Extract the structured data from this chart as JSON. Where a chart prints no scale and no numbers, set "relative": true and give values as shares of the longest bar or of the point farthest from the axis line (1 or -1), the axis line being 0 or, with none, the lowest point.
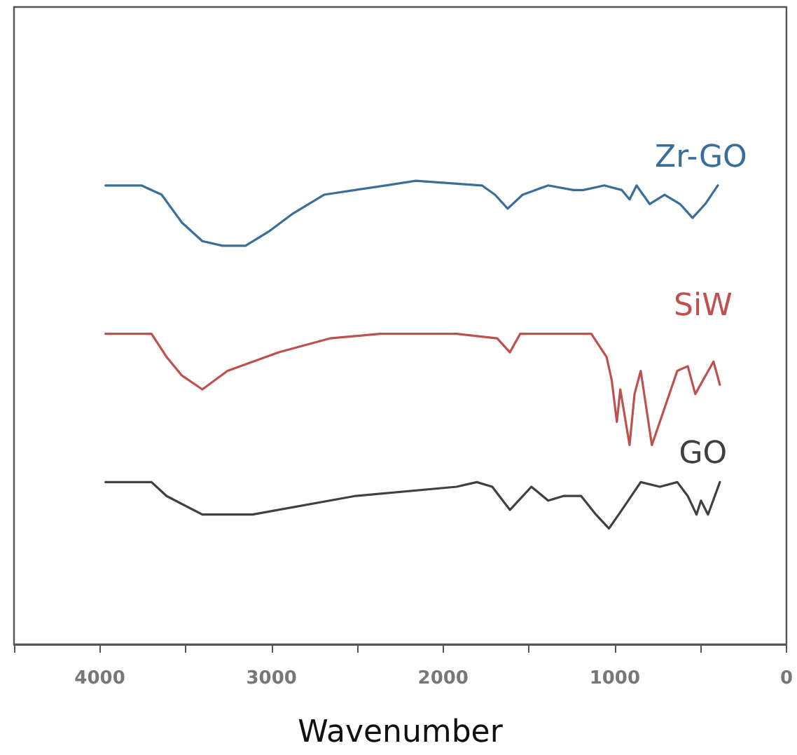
{
  "chart_data": {
    "type": "line",
    "xlabel": "Wavenumber",
    "relative": true,
    "xlim": [
      4500,
      0
    ],
    "xticks": [
      {
        "value": 4500,
        "label": null
      },
      4000,
      {
        "value": 3500,
        "label": null
      },
      3000,
      {
        "value": 2500,
        "label": null
      },
      2000,
      {
        "value": 1500,
        "label": null
      },
      1000,
      {
        "value": 500,
        "label": null
      },
      0
    ],
    "grid": false,
    "legend": false,
    "marker": "none",
    "line_style": "solid",
    "series": [
      {
        "name": "Zr-GO",
        "color": "#3a6e9a",
        "x": [
          3967,
          3758,
          3640,
          3522,
          3403,
          3285,
          3151,
          3018,
          2873,
          2694,
          2514,
          2336,
          2159,
          1774,
          1698,
          1624,
          1537,
          1388,
          1241,
          1184,
          1061,
          959,
          914,
          873,
          797,
          710,
          620,
          547,
          473,
          400
        ],
        "values": [
          0.99,
          0.99,
          0.97,
          0.91,
          0.87,
          0.86,
          0.86,
          0.89,
          0.93,
          0.97,
          0.98,
          0.99,
          1,
          0.99,
          0.97,
          0.94,
          0.97,
          0.99,
          0.98,
          0.98,
          0.99,
          0.98,
          0.96,
          0.99,
          0.95,
          0.97,
          0.95,
          0.92,
          0.95,
          0.99
        ]
      },
      {
        "name": "SiW",
        "color": "#c0504d",
        "x": [
          3967,
          3699,
          3611,
          3522,
          3403,
          3256,
          2958,
          2661,
          2367,
          1922,
          1685,
          1611,
          1551,
          1137,
          1048,
          1018,
          988,
          968,
          914,
          885,
          849,
          784,
          710,
          636,
          575,
          531,
          486,
          425,
          388
        ],
        "values": [
          0.67,
          0.67,
          0.62,
          0.58,
          0.55,
          0.59,
          0.63,
          0.66,
          0.67,
          0.67,
          0.66,
          0.63,
          0.67,
          0.67,
          0.62,
          0.57,
          0.48,
          0.55,
          0.43,
          0.54,
          0.59,
          0.43,
          0.51,
          0.59,
          0.6,
          0.54,
          0.57,
          0.61,
          0.56
        ]
      },
      {
        "name": "GO",
        "color": "#404040",
        "x": [
          3967,
          3699,
          3611,
          3403,
          3110,
          2514,
          1922,
          1804,
          1714,
          1611,
          1486,
          1388,
          1300,
          1196,
          1110,
          1034,
          959,
          849,
          737,
          636,
          575,
          524,
          498,
          457,
          388
        ],
        "values": [
          0.35,
          0.35,
          0.32,
          0.28,
          0.28,
          0.32,
          0.34,
          0.35,
          0.34,
          0.29,
          0.34,
          0.31,
          0.32,
          0.32,
          0.28,
          0.25,
          0.29,
          0.35,
          0.34,
          0.35,
          0.32,
          0.28,
          0.31,
          0.28,
          0.35
        ]
      }
    ]
  }
}
